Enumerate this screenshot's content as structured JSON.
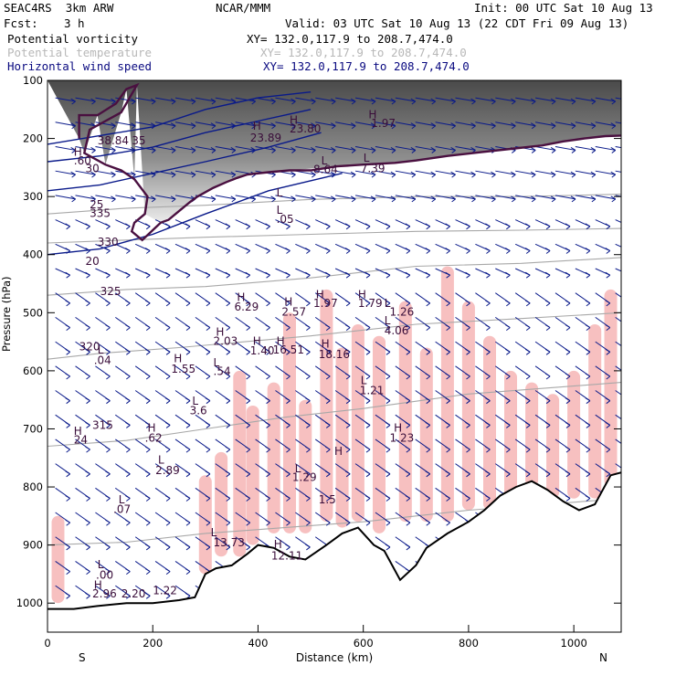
{
  "header": {
    "model": "SEAC4RS  3km ARW",
    "org": "NCAR/MMM",
    "init": "Init: 00 UTC Sat 10 Aug 13",
    "fcst_label": "Fcst:",
    "fcst_value": "3 h",
    "valid": "Valid: 03 UTC Sat 10 Aug 13 (22 CDT Fri 09 Aug 13)",
    "fields": [
      {
        "name": "Potential vorticity",
        "xy": "XY= 132.0,117.9 to 208.7,474.0",
        "color": "#000000"
      },
      {
        "name": "Potential temperature",
        "xy": "XY= 132.0,117.9 to 208.7,474.0",
        "color": "#b8b8b8"
      },
      {
        "name": "Horizontal wind speed",
        "xy": "XY= 132.0,117.9 to 208.7,474.0",
        "color": "#0a0a80"
      }
    ]
  },
  "chart_data": {
    "type": "cross-section",
    "xlabel": "Distance (km)",
    "ylabel": "Pressure (hPa)",
    "xlim": [
      0,
      1090
    ],
    "ylim": [
      1050,
      100
    ],
    "x_ticks": [
      0,
      200,
      400,
      600,
      800,
      1000
    ],
    "y_ticks": [
      100,
      200,
      300,
      400,
      500,
      600,
      700,
      800,
      900,
      1000
    ],
    "x_end_labels": {
      "left": "S",
      "right": "N"
    },
    "colors": {
      "pv": "#4a1040",
      "theta": "#a8a8a8",
      "wind": "#0a1a8a",
      "cloud": "#f7c0c0",
      "terrain": "#000000"
    },
    "tropopause_pv": [
      [
        60,
        200
      ],
      [
        60,
        160
      ],
      [
        95,
        160
      ],
      [
        130,
        140
      ],
      [
        150,
        115
      ],
      [
        170,
        108
      ],
      [
        140,
        155
      ],
      [
        100,
        175
      ],
      [
        80,
        185
      ],
      [
        70,
        225
      ],
      [
        110,
        245
      ],
      [
        140,
        255
      ],
      [
        165,
        270
      ],
      [
        190,
        300
      ],
      [
        185,
        330
      ],
      [
        165,
        345
      ],
      [
        160,
        360
      ],
      [
        180,
        375
      ],
      [
        215,
        345
      ],
      [
        230,
        340
      ],
      [
        250,
        325
      ],
      [
        270,
        310
      ],
      [
        285,
        300
      ],
      [
        315,
        285
      ],
      [
        340,
        275
      ],
      [
        360,
        268
      ],
      [
        380,
        262
      ],
      [
        420,
        258
      ],
      [
        460,
        255
      ],
      [
        500,
        255
      ],
      [
        550,
        248
      ],
      [
        600,
        245
      ],
      [
        660,
        242
      ],
      [
        700,
        238
      ],
      [
        760,
        230
      ],
      [
        820,
        224
      ],
      [
        880,
        218
      ],
      [
        940,
        212
      ],
      [
        980,
        205
      ],
      [
        1020,
        200
      ],
      [
        1060,
        196
      ],
      [
        1090,
        195
      ]
    ],
    "terrain": [
      [
        0,
        1010
      ],
      [
        50,
        1010
      ],
      [
        95,
        1005
      ],
      [
        150,
        1000
      ],
      [
        200,
        1000
      ],
      [
        250,
        995
      ],
      [
        280,
        990
      ],
      [
        300,
        950
      ],
      [
        320,
        940
      ],
      [
        350,
        935
      ],
      [
        380,
        915
      ],
      [
        400,
        900
      ],
      [
        430,
        905
      ],
      [
        460,
        920
      ],
      [
        490,
        925
      ],
      [
        530,
        900
      ],
      [
        560,
        880
      ],
      [
        590,
        870
      ],
      [
        620,
        900
      ],
      [
        640,
        910
      ],
      [
        670,
        960
      ],
      [
        700,
        935
      ],
      [
        720,
        905
      ],
      [
        760,
        880
      ],
      [
        800,
        860
      ],
      [
        830,
        840
      ],
      [
        860,
        815
      ],
      [
        890,
        800
      ],
      [
        920,
        790
      ],
      [
        950,
        805
      ],
      [
        980,
        825
      ],
      [
        1010,
        840
      ],
      [
        1040,
        830
      ],
      [
        1070,
        780
      ],
      [
        1090,
        775
      ]
    ],
    "isentropes": [
      {
        "label": "335",
        "pts": [
          [
            0,
            330
          ],
          [
            150,
            320
          ],
          [
            300,
            315
          ],
          [
            500,
            305
          ],
          [
            700,
            300
          ],
          [
            900,
            300
          ],
          [
            1090,
            296
          ]
        ]
      },
      {
        "label": "330",
        "pts": [
          [
            0,
            380
          ],
          [
            150,
            375
          ],
          [
            300,
            370
          ],
          [
            500,
            365
          ],
          [
            700,
            360
          ],
          [
            900,
            358
          ],
          [
            1090,
            355
          ]
        ]
      },
      {
        "label": "325",
        "pts": [
          [
            0,
            470
          ],
          [
            150,
            460
          ],
          [
            300,
            455
          ],
          [
            500,
            440
          ],
          [
            700,
            420
          ],
          [
            900,
            415
          ],
          [
            1090,
            405
          ]
        ]
      },
      {
        "label": "320",
        "pts": [
          [
            0,
            580
          ],
          [
            100,
            570
          ],
          [
            250,
            560
          ],
          [
            500,
            540
          ],
          [
            700,
            520
          ],
          [
            900,
            510
          ],
          [
            1090,
            500
          ]
        ]
      },
      {
        "label": "315",
        "pts": [
          [
            0,
            730
          ],
          [
            150,
            720
          ],
          [
            300,
            700
          ],
          [
            450,
            680
          ],
          [
            600,
            665
          ],
          [
            800,
            640
          ],
          [
            1090,
            620
          ]
        ]
      },
      {
        "label": "",
        "pts": [
          [
            0,
            900
          ],
          [
            150,
            895
          ],
          [
            300,
            880
          ],
          [
            450,
            870
          ],
          [
            600,
            860
          ],
          [
            800,
            840
          ],
          [
            1090,
            820
          ]
        ]
      }
    ],
    "wind_contours": [
      {
        "label": "35",
        "pts": [
          [
            0,
            210
          ],
          [
            100,
            195
          ],
          [
            200,
            180
          ],
          [
            300,
            150
          ],
          [
            400,
            130
          ],
          [
            500,
            120
          ]
        ]
      },
      {
        "label": "30",
        "pts": [
          [
            0,
            240
          ],
          [
            100,
            230
          ],
          [
            200,
            215
          ],
          [
            300,
            190
          ],
          [
            400,
            170
          ],
          [
            500,
            150
          ]
        ]
      },
      {
        "label": "25",
        "pts": [
          [
            0,
            290
          ],
          [
            100,
            280
          ],
          [
            200,
            260
          ],
          [
            300,
            240
          ],
          [
            420,
            215
          ],
          [
            520,
            190
          ]
        ]
      },
      {
        "label": "20",
        "pts": [
          [
            0,
            400
          ],
          [
            100,
            390
          ],
          [
            200,
            365
          ],
          [
            300,
            330
          ],
          [
            420,
            290
          ],
          [
            560,
            260
          ]
        ]
      }
    ],
    "cloud_bands": [
      [
        20,
        850,
        1000
      ],
      [
        300,
        780,
        950
      ],
      [
        330,
        740,
        920
      ],
      [
        365,
        600,
        920
      ],
      [
        390,
        660,
        900
      ],
      [
        430,
        620,
        880
      ],
      [
        460,
        500,
        880
      ],
      [
        490,
        650,
        880
      ],
      [
        530,
        460,
        860
      ],
      [
        560,
        560,
        870
      ],
      [
        590,
        520,
        860
      ],
      [
        630,
        540,
        880
      ],
      [
        680,
        480,
        860
      ],
      [
        720,
        560,
        860
      ],
      [
        760,
        420,
        860
      ],
      [
        800,
        480,
        840
      ],
      [
        840,
        540,
        840
      ],
      [
        880,
        600,
        820
      ],
      [
        920,
        620,
        800
      ],
      [
        960,
        640,
        820
      ],
      [
        1000,
        600,
        820
      ],
      [
        1040,
        520,
        820
      ],
      [
        1070,
        460,
        800
      ]
    ],
    "annotations": [
      {
        "t": "H",
        "x": 390,
        "y": 185
      },
      {
        "t": "23.89",
        "x": 385,
        "y": 205
      },
      {
        "t": "H",
        "x": 460,
        "y": 175
      },
      {
        "t": "23.80",
        "x": 460,
        "y": 190
      },
      {
        "t": "H",
        "x": 610,
        "y": 165
      },
      {
        "t": "1.97",
        "x": 615,
        "y": 180
      },
      {
        "t": "L",
        "x": 520,
        "y": 245
      },
      {
        "t": "8.64",
        "x": 505,
        "y": 260
      },
      {
        "t": "L",
        "x": 600,
        "y": 240
      },
      {
        "t": "7.39",
        "x": 595,
        "y": 258
      },
      {
        "t": "L",
        "x": 435,
        "y": 300
      },
      {
        "t": "L",
        "x": 435,
        "y": 330
      },
      {
        "t": ".05",
        "x": 435,
        "y": 345
      },
      {
        "t": "H",
        "x": 360,
        "y": 480
      },
      {
        "t": "6.29",
        "x": 355,
        "y": 496
      },
      {
        "t": "H",
        "x": 450,
        "y": 488
      },
      {
        "t": "2.57",
        "x": 445,
        "y": 505
      },
      {
        "t": "H",
        "x": 510,
        "y": 475
      },
      {
        "t": "1.97",
        "x": 505,
        "y": 490
      },
      {
        "t": "H",
        "x": 590,
        "y": 475
      },
      {
        "t": "1.79",
        "x": 590,
        "y": 490
      },
      {
        "t": "L",
        "x": 640,
        "y": 490
      },
      {
        "t": "L",
        "x": 640,
        "y": 520
      },
      {
        "t": "1.26",
        "x": 650,
        "y": 505
      },
      {
        "t": "4.06",
        "x": 640,
        "y": 537
      },
      {
        "t": "H",
        "x": 320,
        "y": 540
      },
      {
        "t": "2.03",
        "x": 315,
        "y": 555
      },
      {
        "t": "H",
        "x": 390,
        "y": 555
      },
      {
        "t": "1.40",
        "x": 385,
        "y": 572
      },
      {
        "t": "H",
        "x": 435,
        "y": 555
      },
      {
        "t": "16.51",
        "x": 428,
        "y": 570
      },
      {
        "t": "H",
        "x": 520,
        "y": 560
      },
      {
        "t": "18.16",
        "x": 515,
        "y": 578
      },
      {
        "t": "L",
        "x": 95,
        "y": 570
      },
      {
        "t": ".04",
        "x": 88,
        "y": 588
      },
      {
        "t": "H",
        "x": 240,
        "y": 585
      },
      {
        "t": "1.55",
        "x": 235,
        "y": 603
      },
      {
        "t": "L",
        "x": 315,
        "y": 592
      },
      {
        "t": ".54",
        "x": 315,
        "y": 607
      },
      {
        "t": "L",
        "x": 275,
        "y": 658
      },
      {
        "t": "3.6",
        "x": 270,
        "y": 675
      },
      {
        "t": "L",
        "x": 595,
        "y": 623
      },
      {
        "t": "1.21",
        "x": 593,
        "y": 640
      },
      {
        "t": "H",
        "x": 190,
        "y": 705
      },
      {
        "t": ".62",
        "x": 185,
        "y": 722
      },
      {
        "t": "H",
        "x": 658,
        "y": 705
      },
      {
        "t": "1.23",
        "x": 650,
        "y": 722
      },
      {
        "t": "L",
        "x": 210,
        "y": 760
      },
      {
        "t": "2.89",
        "x": 205,
        "y": 778
      },
      {
        "t": "L",
        "x": 470,
        "y": 775
      },
      {
        "t": "1.29",
        "x": 465,
        "y": 790
      },
      {
        "t": "H",
        "x": 545,
        "y": 745
      },
      {
        "t": "L",
        "x": 135,
        "y": 828
      },
      {
        "t": ".07",
        "x": 125,
        "y": 845
      },
      {
        "t": "1.5",
        "x": 515,
        "y": 828
      },
      {
        "t": "L",
        "x": 310,
        "y": 885
      },
      {
        "t": "13.73",
        "x": 315,
        "y": 902
      },
      {
        "t": "H",
        "x": 430,
        "y": 905
      },
      {
        "t": "12.11",
        "x": 425,
        "y": 925
      },
      {
        "t": "L",
        "x": 95,
        "y": 940
      },
      {
        "t": ".00",
        "x": 92,
        "y": 958
      },
      {
        "t": "H",
        "x": 88,
        "y": 975
      },
      {
        "t": "2.96",
        "x": 85,
        "y": 990
      },
      {
        "t": "2.20",
        "x": 140,
        "y": 990
      },
      {
        "t": "1.22",
        "x": 200,
        "y": 985
      },
      {
        "t": "H",
        "x": 50,
        "y": 710
      },
      {
        "t": "24",
        "x": 50,
        "y": 725
      },
      {
        "t": "H",
        "x": 50,
        "y": 230
      },
      {
        "t": ".60",
        "x": 50,
        "y": 245
      },
      {
        "t": "30",
        "x": 72,
        "y": 258
      },
      {
        "t": "35",
        "x": 160,
        "y": 210
      },
      {
        "t": "38.84",
        "x": 95,
        "y": 210
      },
      {
        "t": "25",
        "x": 80,
        "y": 320
      },
      {
        "t": "20",
        "x": 72,
        "y": 418
      },
      {
        "t": "335",
        "x": 80,
        "y": 335
      },
      {
        "t": "330",
        "x": 95,
        "y": 385
      },
      {
        "t": "325",
        "x": 100,
        "y": 470
      },
      {
        "t": "320",
        "x": 60,
        "y": 565
      },
      {
        "t": "315",
        "x": 85,
        "y": 700
      }
    ]
  }
}
